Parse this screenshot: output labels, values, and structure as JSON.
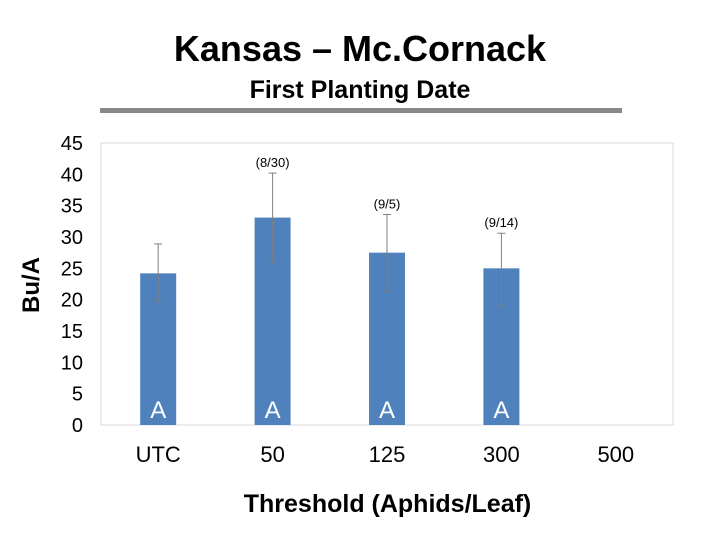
{
  "header": {
    "title": "Kansas – Mc.Cornack",
    "subtitle": "First Planting Date"
  },
  "chart_data": {
    "type": "bar",
    "xlabel": "Threshold (Aphids/Leaf)",
    "ylabel": "Bu/A",
    "ylim": [
      0,
      45
    ],
    "yticks": [
      0,
      5,
      10,
      15,
      20,
      25,
      30,
      35,
      40,
      45
    ],
    "categories": [
      "UTC",
      "50",
      "125",
      "300",
      "500"
    ],
    "values": [
      24.2,
      33.1,
      27.5,
      25.0,
      null
    ],
    "error_low": [
      19.7,
      26.0,
      21.3,
      19.0,
      null
    ],
    "error_high": [
      28.9,
      40.2,
      33.6,
      30.6,
      null
    ],
    "mean_separation": [
      "A",
      "A",
      "A",
      "A",
      ""
    ],
    "date_labels": [
      "",
      "(8/30)",
      "(9/5)",
      "(9/14)",
      ""
    ],
    "bar_color": "#4f81bd",
    "grid": false
  }
}
